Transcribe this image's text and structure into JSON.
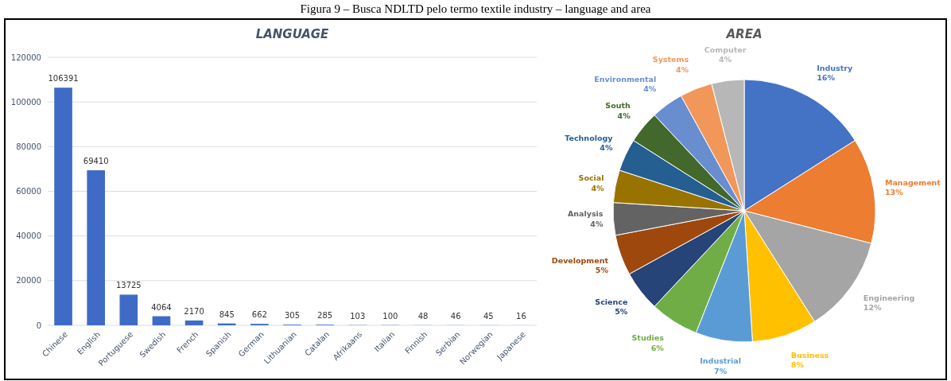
{
  "chart_data": [
    {
      "type": "bar",
      "title": "LANGUAGE",
      "annotations": [
        "Figura 9 – Busca NDLTD pelo termo textile industry – language and area"
      ],
      "categories": [
        "Chinese",
        "English",
        "Portuguese",
        "Swedish",
        "French",
        "Spanish",
        "German",
        "Lithuanian",
        "Catalan",
        "Afrikaans",
        "Italian",
        "Finnish",
        "Serbian",
        "Norwegian",
        "Japanese"
      ],
      "values": [
        106391,
        69410,
        13725,
        4064,
        2170,
        845,
        662,
        305,
        285,
        103,
        100,
        48,
        46,
        45,
        16
      ],
      "color": "#3f6bc6",
      "ylim": [
        0,
        120000
      ],
      "yticks": [
        0,
        20000,
        40000,
        60000,
        80000,
        100000,
        120000
      ],
      "grid": "y",
      "data_labels": true
    },
    {
      "type": "pie",
      "title": "AREA",
      "categories": [
        "Industry",
        "Management",
        "Engineering",
        "Business",
        "Industrial",
        "Studies",
        "Science",
        "Development",
        "Analysis",
        "Social",
        "Technology",
        "South",
        "Environmental",
        "Systems",
        "Computer"
      ],
      "values": [
        16,
        13,
        12,
        8,
        7,
        6,
        5,
        5,
        4,
        4,
        4,
        4,
        4,
        4,
        4
      ],
      "colors": [
        "#4472c4",
        "#ed7d31",
        "#a5a5a5",
        "#ffc000",
        "#5b9bd5",
        "#70ad47",
        "#264478",
        "#9e480e",
        "#636363",
        "#997300",
        "#255e91",
        "#43682b",
        "#698ed0",
        "#f1975a",
        "#b7b7b7"
      ],
      "value_labels": [
        "16%",
        "13%",
        "12%",
        "8%",
        "7%",
        "6%",
        "5%",
        "5%",
        "4%",
        "4%",
        "4%",
        "4%",
        "4%",
        "4%",
        "4%"
      ]
    }
  ]
}
